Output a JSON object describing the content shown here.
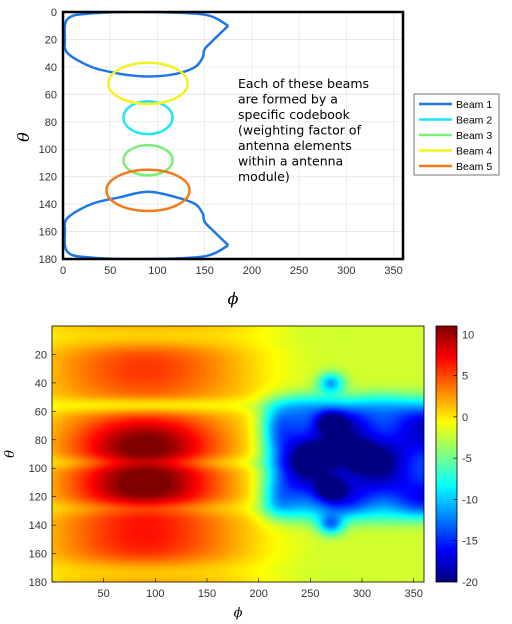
{
  "chart_data": [
    {
      "type": "line",
      "xlabel": "ϕ",
      "ylabel": "θ",
      "xlim": [
        0,
        360
      ],
      "ylim": [
        180,
        0
      ],
      "xticks": [
        "0",
        "50",
        "100",
        "150",
        "200",
        "250",
        "300",
        "350"
      ],
      "yticks": [
        "0",
        "20",
        "40",
        "60",
        "80",
        "100",
        "120",
        "140",
        "160",
        "180"
      ],
      "grid": true,
      "legend_position": "outside-right",
      "annotation": [
        "Each of these beams",
        "are formed by a",
        "specific codebook",
        "(weighting factor of",
        "antenna elements",
        "within a antenna",
        "module)"
      ],
      "series": [
        {
          "name": "Beam 1",
          "color": "#1f77e6",
          "top_outline": [
            [
              175,
              10
            ],
            [
              150,
              2
            ],
            [
              90,
              0
            ],
            [
              30,
              1
            ],
            [
              5,
              5
            ],
            [
              2,
              20
            ],
            [
              5,
              30
            ],
            [
              30,
              40
            ],
            [
              60,
              45
            ],
            [
              90,
              47
            ],
            [
              120,
              45
            ],
            [
              140,
              40
            ],
            [
              148,
              33
            ],
            [
              150,
              27
            ],
            [
              160,
              20
            ],
            [
              175,
              10
            ]
          ],
          "bottom_outline": [
            [
              175,
              170
            ],
            [
              150,
              178
            ],
            [
              90,
              180
            ],
            [
              30,
              179
            ],
            [
              5,
              175
            ],
            [
              2,
              160
            ],
            [
              5,
              150
            ],
            [
              30,
              140
            ],
            [
              60,
              135
            ],
            [
              90,
              131
            ],
            [
              120,
              135
            ],
            [
              140,
              140
            ],
            [
              148,
              147
            ],
            [
              150,
              153
            ],
            [
              160,
              160
            ],
            [
              175,
              170
            ]
          ]
        },
        {
          "name": "Beam 2",
          "color": "#22e4f2",
          "center": [
            90,
            77
          ],
          "phi_halfwidth": 26,
          "theta_halfwidth": 12
        },
        {
          "name": "Beam 3",
          "color": "#7aee76",
          "center": [
            90,
            108
          ],
          "phi_halfwidth": 26,
          "theta_halfwidth": 11
        },
        {
          "name": "Beam 4",
          "color": "#f2f21e",
          "center": [
            90,
            52
          ],
          "phi_halfwidth": 42,
          "theta_halfwidth": 15
        },
        {
          "name": "Beam 5",
          "color": "#f07b18",
          "center": [
            90,
            130
          ],
          "phi_halfwidth": 44,
          "theta_halfwidth": 15
        }
      ]
    },
    {
      "type": "heatmap",
      "xlabel": "ϕ",
      "ylabel": "θ",
      "xlim": [
        0,
        360
      ],
      "ylim": [
        180,
        0
      ],
      "xticks": [
        "50",
        "100",
        "150",
        "200",
        "250",
        "300",
        "350"
      ],
      "yticks": [
        "20",
        "40",
        "60",
        "80",
        "100",
        "120",
        "140",
        "160",
        "180"
      ],
      "colorbar": {
        "min": -20,
        "max": 11,
        "ticks": [
          "10",
          "5",
          "0",
          "-5",
          "-10",
          "-15",
          "-20"
        ],
        "colormap": "jet"
      },
      "features": {
        "hot_lobes": [
          {
            "phi": 90,
            "theta": 82,
            "value": 11
          },
          {
            "phi": 90,
            "theta": 112,
            "value": 11
          }
        ],
        "warm_lobes": [
          {
            "phi": 90,
            "theta": 30,
            "value": 5
          },
          {
            "phi": 90,
            "theta": 150,
            "value": 6
          }
        ],
        "cold_region": {
          "phi_range": [
            200,
            355
          ],
          "theta_range": [
            60,
            130
          ],
          "value": -13
        },
        "deep_nulls": [
          {
            "phi": 270,
            "theta": 40
          },
          {
            "phi": 270,
            "theta": 68
          },
          {
            "phi": 270,
            "theta": 115
          },
          {
            "phi": 270,
            "theta": 140
          },
          {
            "phi": 255,
            "theta": 92
          },
          {
            "phi": 298,
            "theta": 92
          }
        ]
      }
    }
  ]
}
